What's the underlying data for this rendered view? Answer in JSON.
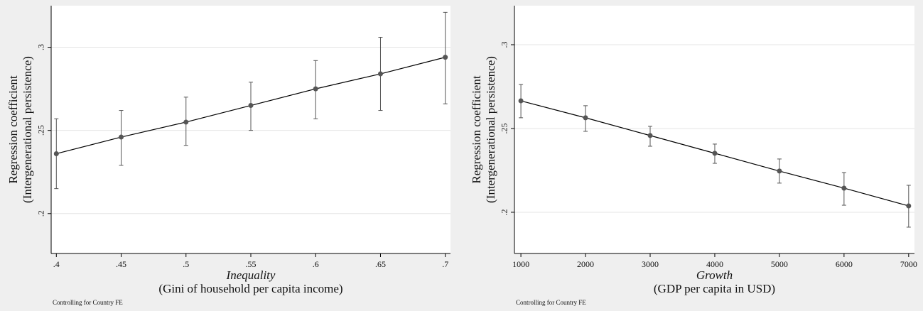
{
  "chart_data": [
    {
      "type": "line",
      "x_label": "Inequality",
      "x_sublabel": "(Gini of household per capita income)",
      "y_label": [
        "Regression coefficient",
        "(Intergenerational persistence)"
      ],
      "note": "Controlling for Country FE",
      "x": [
        0.4,
        0.45,
        0.5,
        0.55,
        0.6,
        0.65,
        0.7
      ],
      "series": [
        {
          "color": "#555555",
          "values": [
            0.236,
            0.246,
            0.255,
            0.265,
            0.275,
            0.284,
            0.294
          ],
          "lower": [
            0.215,
            0.229,
            0.241,
            0.25,
            0.257,
            0.262,
            0.266
          ],
          "upper": [
            0.257,
            0.262,
            0.27,
            0.279,
            0.292,
            0.306,
            0.321
          ]
        }
      ],
      "xlim": [
        0.396,
        0.704
      ],
      "ylim": [
        0.176,
        0.325
      ],
      "xticks": [
        {
          "value": 0.4,
          "label": ".4"
        },
        {
          "value": 0.45,
          "label": ".45"
        },
        {
          "value": 0.5,
          "label": ".5"
        },
        {
          "value": 0.55,
          "label": ".55"
        },
        {
          "value": 0.6,
          "label": ".6"
        },
        {
          "value": 0.65,
          "label": ".65"
        },
        {
          "value": 0.7,
          "label": ".7"
        }
      ],
      "yticks": [
        {
          "value": 0.2,
          "label": ".2"
        },
        {
          "value": 0.25,
          "label": ".25"
        },
        {
          "value": 0.3,
          "label": ".3"
        }
      ],
      "grid": true
    },
    {
      "type": "line",
      "x_label": "Growth",
      "x_sublabel": "(GDP per capita in USD)",
      "y_label": [
        "Regression coefficient",
        "(Intergenerational persistence)"
      ],
      "note": "Controlling for Country FE",
      "x": [
        1000,
        2000,
        3000,
        4000,
        5000,
        6000,
        7000
      ],
      "series": [
        {
          "color": "#555555",
          "values": [
            0.2665,
            0.2564,
            0.2458,
            0.2352,
            0.2246,
            0.2144,
            0.2038
          ],
          "lower": [
            0.2564,
            0.2483,
            0.2394,
            0.2292,
            0.2174,
            0.2042,
            0.1911
          ],
          "upper": [
            0.2763,
            0.2636,
            0.2513,
            0.2407,
            0.2318,
            0.2237,
            0.2161
          ]
        }
      ],
      "xlim": [
        900,
        7090
      ],
      "ylim": [
        0.1754,
        0.3233
      ],
      "xticks": [
        1000,
        2000,
        3000,
        4000,
        5000,
        6000,
        7000
      ],
      "yticks": [
        {
          "value": 0.2,
          "label": ".2"
        },
        {
          "value": 0.25,
          "label": ".25"
        },
        {
          "value": 0.3,
          "label": ".3"
        }
      ],
      "grid": true
    }
  ]
}
